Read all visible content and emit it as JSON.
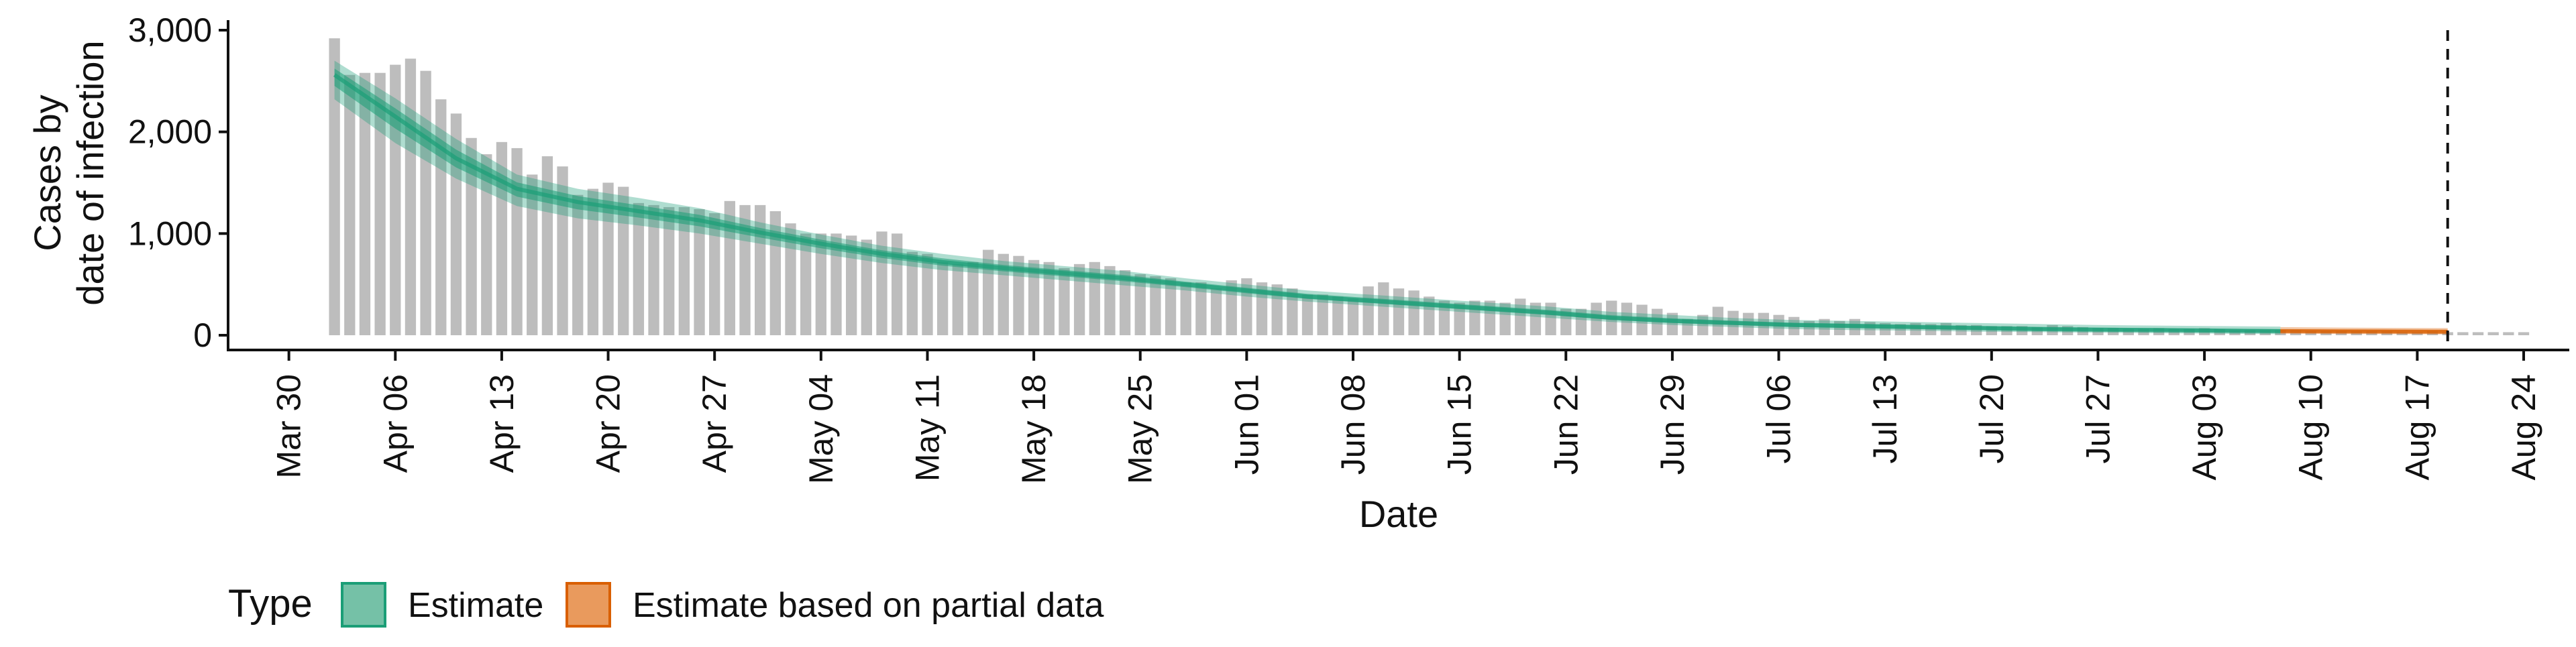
{
  "chart_data": {
    "type": "bar",
    "xlabel": "Date",
    "ylabel_lines": [
      "Cases by",
      "date of infection"
    ],
    "ylim": [
      0,
      3000
    ],
    "xlim": [
      "2020-03-26",
      "2020-08-27"
    ],
    "yticks": [
      0,
      1000,
      2000,
      3000
    ],
    "ytick_labels": [
      "0",
      "1,000",
      "2,000",
      "3,000"
    ],
    "xticks": [
      {
        "date": "2020-03-30",
        "label": "Mar 30"
      },
      {
        "date": "2020-04-06",
        "label": "Apr 06"
      },
      {
        "date": "2020-04-13",
        "label": "Apr 13"
      },
      {
        "date": "2020-04-20",
        "label": "Apr 20"
      },
      {
        "date": "2020-04-27",
        "label": "Apr 27"
      },
      {
        "date": "2020-05-04",
        "label": "May 04"
      },
      {
        "date": "2020-05-11",
        "label": "May 11"
      },
      {
        "date": "2020-05-18",
        "label": "May 18"
      },
      {
        "date": "2020-05-25",
        "label": "May 25"
      },
      {
        "date": "2020-06-01",
        "label": "Jun 01"
      },
      {
        "date": "2020-06-08",
        "label": "Jun 08"
      },
      {
        "date": "2020-06-15",
        "label": "Jun 15"
      },
      {
        "date": "2020-06-22",
        "label": "Jun 22"
      },
      {
        "date": "2020-06-29",
        "label": "Jun 29"
      },
      {
        "date": "2020-07-06",
        "label": "Jul 06"
      },
      {
        "date": "2020-07-13",
        "label": "Jul 13"
      },
      {
        "date": "2020-07-20",
        "label": "Jul 20"
      },
      {
        "date": "2020-07-27",
        "label": "Jul 27"
      },
      {
        "date": "2020-08-03",
        "label": "Aug 03"
      },
      {
        "date": "2020-08-10",
        "label": "Aug 10"
      },
      {
        "date": "2020-08-17",
        "label": "Aug 17"
      },
      {
        "date": "2020-08-24",
        "label": "Aug 24"
      }
    ],
    "bar_series": {
      "start_date": "2020-04-02",
      "color": "#bdbdbd",
      "values": [
        2920,
        2560,
        2580,
        2580,
        2660,
        2720,
        2600,
        2320,
        2180,
        1940,
        1780,
        1900,
        1840,
        1580,
        1760,
        1660,
        1380,
        1440,
        1500,
        1460,
        1300,
        1280,
        1260,
        1260,
        1240,
        1200,
        1320,
        1280,
        1280,
        1220,
        1100,
        1000,
        1000,
        1000,
        980,
        940,
        1020,
        1000,
        820,
        800,
        720,
        700,
        720,
        840,
        800,
        780,
        740,
        720,
        660,
        700,
        720,
        680,
        640,
        600,
        580,
        560,
        520,
        520,
        460,
        540,
        560,
        520,
        500,
        460,
        400,
        400,
        380,
        360,
        480,
        520,
        460,
        440,
        380,
        340,
        320,
        340,
        340,
        320,
        360,
        320,
        320,
        260,
        260,
        320,
        340,
        320,
        300,
        260,
        220,
        160,
        200,
        280,
        240,
        220,
        220,
        200,
        180,
        140,
        160,
        140,
        160,
        130,
        120,
        110,
        120,
        110,
        120,
        100,
        100,
        90,
        90,
        90,
        80,
        100,
        90,
        80,
        70,
        70,
        60,
        60,
        70,
        60,
        60,
        70,
        60,
        50,
        50,
        50,
        50,
        50,
        40,
        40,
        40,
        40,
        40,
        40,
        30,
        30,
        40,
        30,
        30,
        30,
        30,
        30,
        30
      ]
    },
    "estimate_series": {
      "name": "Estimate",
      "color": "#1b9e77",
      "dates": [
        "2020-04-02",
        "2020-04-06",
        "2020-04-10",
        "2020-04-14",
        "2020-04-18",
        "2020-04-22",
        "2020-04-26",
        "2020-04-30",
        "2020-05-04",
        "2020-05-08",
        "2020-05-12",
        "2020-05-16",
        "2020-05-20",
        "2020-05-24",
        "2020-05-28",
        "2020-06-01",
        "2020-06-05",
        "2020-06-09",
        "2020-06-13",
        "2020-06-17",
        "2020-06-21",
        "2020-06-25",
        "2020-06-29",
        "2020-07-03",
        "2020-07-07",
        "2020-07-11",
        "2020-07-15",
        "2020-07-19",
        "2020-07-23",
        "2020-07-27",
        "2020-07-31",
        "2020-08-04",
        "2020-08-08"
      ],
      "median": [
        2560,
        2150,
        1740,
        1440,
        1310,
        1220,
        1130,
        1010,
        900,
        800,
        720,
        660,
        610,
        560,
        500,
        440,
        380,
        340,
        300,
        260,
        220,
        170,
        140,
        120,
        100,
        90,
        80,
        70,
        60,
        55,
        50,
        45,
        40
      ],
      "ci_90_lower": [
        2320,
        1890,
        1540,
        1270,
        1150,
        1080,
        1000,
        900,
        800,
        710,
        640,
        590,
        540,
        490,
        440,
        380,
        330,
        290,
        250,
        210,
        170,
        130,
        100,
        80,
        60,
        50,
        45,
        35,
        30,
        25,
        20,
        15,
        10
      ],
      "ci_90_upper": [
        2700,
        2330,
        1930,
        1580,
        1440,
        1350,
        1250,
        1110,
        990,
        880,
        800,
        730,
        680,
        630,
        560,
        500,
        440,
        400,
        360,
        320,
        280,
        230,
        200,
        170,
        150,
        140,
        130,
        120,
        110,
        100,
        95,
        90,
        85
      ]
    },
    "partial_series": {
      "name": "Estimate based on partial data",
      "color": "#d95f02",
      "dates": [
        "2020-08-08",
        "2020-08-12",
        "2020-08-16",
        "2020-08-19"
      ],
      "median": [
        40,
        38,
        36,
        35
      ],
      "ci_90_lower": [
        15,
        12,
        10,
        8
      ],
      "ci_90_upper": [
        80,
        75,
        72,
        70
      ]
    },
    "vline_date": "2020-08-19",
    "legend": {
      "title": "Type",
      "position": "bottom",
      "items": [
        {
          "label": "Estimate",
          "fill": "#75c1a7",
          "stroke": "#1b9e77"
        },
        {
          "label": "Estimate based on partial data",
          "fill": "#e99a5d",
          "stroke": "#d95f02"
        }
      ]
    },
    "grid": false
  }
}
